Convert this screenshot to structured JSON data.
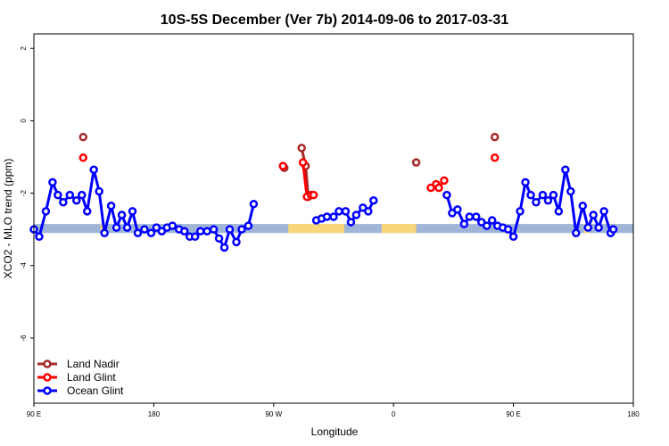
{
  "chart_data": {
    "type": "line",
    "title": "10S-5S December (Ver 7b)   2014-09-06 to 2017-03-31",
    "xlabel": "Longitude",
    "ylabel": "XCO2 - MLO trend (ppm)",
    "xlim": [
      -90,
      360
    ],
    "ylim": [
      -7.8,
      2.4
    ],
    "x_ticks": [
      {
        "value": -90,
        "label": "90 E"
      },
      {
        "value": 0,
        "label": "180"
      },
      {
        "value": 90,
        "label": "90 W"
      },
      {
        "value": 180,
        "label": "0"
      },
      {
        "value": 270,
        "label": "90 E"
      },
      {
        "value": 360,
        "label": "180"
      }
    ],
    "y_ticks": [
      {
        "value": 2,
        "label": "2"
      },
      {
        "value": 0,
        "label": "0"
      },
      {
        "value": -2,
        "label": "-2"
      },
      {
        "value": -4,
        "label": "-4"
      },
      {
        "value": -6,
        "label": "-6"
      }
    ],
    "land_band": {
      "y_range": [
        -3.1,
        -2.85
      ],
      "ocean_color": "#9fb5d8",
      "land_color": "#f8d77a",
      "land_segments": [
        [
          -40,
          -36
        ],
        [
          101,
          143
        ],
        [
          171,
          197
        ],
        [
          323,
          327
        ]
      ]
    },
    "series": [
      {
        "name": "Land Nadir",
        "color": "#a52a2a",
        "points": [
          [
            -53,
            -0.45
          ],
          [
            111,
            -0.75
          ],
          [
            114,
            -1.25
          ],
          [
            197,
            -1.15
          ],
          [
            -53,
            -0.45
          ]
        ],
        "segments": [
          [
            [
              111,
              -0.75
            ],
            [
              114,
              -1.25
            ],
            [
              116,
              -2.1
            ]
          ]
        ],
        "singles": [
          [
            -53,
            -0.45
          ],
          [
            98,
            -1.3
          ],
          [
            197,
            -1.15
          ],
          [
            256,
            -0.45
          ]
        ]
      },
      {
        "name": "Land Glint",
        "color": "#ff0000",
        "segments": [
          [
            [
              112,
              -1.15
            ],
            [
              115,
              -2.1
            ],
            [
              118,
              -2.05
            ],
            [
              120,
              -2.05
            ]
          ],
          [
            [
              208,
              -1.85
            ],
            [
              212,
              -1.75
            ],
            [
              214,
              -1.85
            ],
            [
              218,
              -1.65
            ]
          ]
        ],
        "singles": [
          [
            -53,
            -1.02
          ],
          [
            97,
            -1.25
          ],
          [
            256,
            -1.02
          ]
        ]
      },
      {
        "name": "Ocean Glint",
        "color": "#0000ff",
        "segments": [
          [
            [
              -90,
              -3.0
            ],
            [
              -86,
              -3.2
            ],
            [
              -81,
              -2.5
            ],
            [
              -76,
              -1.7
            ],
            [
              -72,
              -2.05
            ],
            [
              -68,
              -2.25
            ],
            [
              -63,
              -2.05
            ],
            [
              -58,
              -2.2
            ],
            [
              -54,
              -2.05
            ],
            [
              -50,
              -2.5
            ],
            [
              -45,
              -1.35
            ],
            [
              -41,
              -1.95
            ],
            [
              -37,
              -3.1
            ],
            [
              -32,
              -2.35
            ],
            [
              -28,
              -2.95
            ],
            [
              -24,
              -2.6
            ],
            [
              -20,
              -2.95
            ],
            [
              -16,
              -2.5
            ],
            [
              -12,
              -3.1
            ],
            [
              -7,
              -3.0
            ],
            [
              -2,
              -3.1
            ],
            [
              2,
              -2.95
            ],
            [
              6,
              -3.05
            ],
            [
              10,
              -2.95
            ],
            [
              14,
              -2.9
            ],
            [
              19,
              -3.0
            ],
            [
              23,
              -3.05
            ],
            [
              27,
              -3.2
            ],
            [
              31,
              -3.2
            ],
            [
              35,
              -3.05
            ],
            [
              40,
              -3.05
            ],
            [
              45,
              -3.0
            ],
            [
              49,
              -3.25
            ],
            [
              53,
              -3.5
            ],
            [
              57,
              -3.0
            ],
            [
              62,
              -3.35
            ],
            [
              66,
              -3.0
            ],
            [
              71,
              -2.9
            ],
            [
              75,
              -2.3
            ]
          ],
          [
            [
              122,
              -2.75
            ],
            [
              126,
              -2.7
            ],
            [
              130,
              -2.65
            ],
            [
              135,
              -2.65
            ],
            [
              139,
              -2.5
            ],
            [
              144,
              -2.5
            ],
            [
              148,
              -2.8
            ],
            [
              152,
              -2.6
            ],
            [
              157,
              -2.4
            ],
            [
              161,
              -2.5
            ],
            [
              165,
              -2.2
            ]
          ],
          [
            [
              220,
              -2.05
            ],
            [
              224,
              -2.55
            ],
            [
              228,
              -2.45
            ],
            [
              233,
              -2.85
            ],
            [
              237,
              -2.65
            ],
            [
              242,
              -2.65
            ],
            [
              246,
              -2.8
            ],
            [
              250,
              -2.9
            ],
            [
              254,
              -2.75
            ],
            [
              258,
              -2.9
            ],
            [
              262,
              -2.95
            ],
            [
              266,
              -3.0
            ],
            [
              270,
              -3.2
            ],
            [
              275,
              -2.5
            ],
            [
              279,
              -1.7
            ],
            [
              283,
              -2.05
            ],
            [
              287,
              -2.25
            ],
            [
              292,
              -2.05
            ],
            [
              296,
              -2.2
            ],
            [
              300,
              -2.05
            ],
            [
              304,
              -2.5
            ],
            [
              309,
              -1.35
            ],
            [
              313,
              -1.95
            ],
            [
              317,
              -3.1
            ],
            [
              322,
              -2.35
            ],
            [
              326,
              -2.95
            ],
            [
              330,
              -2.6
            ],
            [
              334,
              -2.95
            ],
            [
              338,
              -2.5
            ],
            [
              343,
              -3.1
            ],
            [
              345,
              -3.0
            ]
          ]
        ],
        "singles": []
      }
    ],
    "legend": {
      "position": "bottom-left",
      "entries": [
        {
          "label": "Land Nadir",
          "color": "#a52a2a"
        },
        {
          "label": "Land Glint",
          "color": "#ff0000"
        },
        {
          "label": "Ocean Glint",
          "color": "#0000ff"
        }
      ]
    }
  }
}
